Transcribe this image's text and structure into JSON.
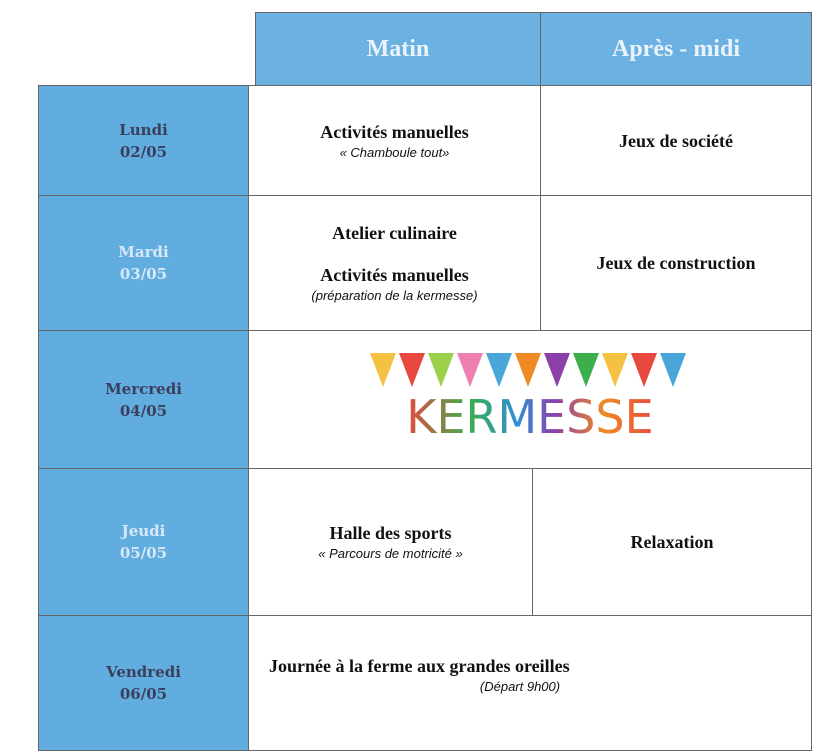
{
  "header": {
    "columns": [
      "Matin",
      "Après - midi"
    ]
  },
  "rows": [
    {
      "day": "Lundi",
      "date": "02/05",
      "morning": {
        "title": "Activités manuelles",
        "note": "« Chamboule tout»"
      },
      "afternoon": {
        "title": "Jeux de société"
      }
    },
    {
      "day": "Mardi",
      "date": "03/05",
      "morning": {
        "title": "Atelier culinaire",
        "title2": "Activités manuelles",
        "note": "(préparation de la kermesse)"
      },
      "afternoon": {
        "title": "Jeux de construction"
      }
    },
    {
      "day": "Mercredi",
      "date": "04/05",
      "full": {
        "banner": "KERMESSE"
      }
    },
    {
      "day": "Jeudi",
      "date": "05/05",
      "morning": {
        "title": "Halle des sports",
        "note": "« Parcours de motricité »"
      },
      "afternoon": {
        "title": "Relaxation"
      }
    },
    {
      "day": "Vendredi",
      "date": "06/05",
      "full": {
        "title": "Journée à la ferme aux grandes oreilles",
        "note": "(Départ 9h00)"
      }
    }
  ]
}
